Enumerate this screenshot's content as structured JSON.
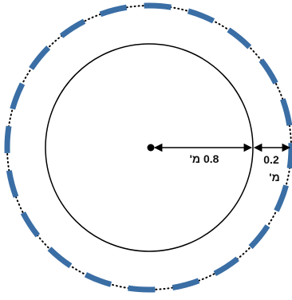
{
  "diagram": {
    "inner_label": "0.8 מ'",
    "outer_value": "0.2",
    "outer_unit": "מ'"
  },
  "colors": {
    "stroke": "#000000",
    "dash_accent": "#3a6ea5",
    "background": "#ffffff"
  },
  "icons": {
    "center": "center-dot"
  }
}
